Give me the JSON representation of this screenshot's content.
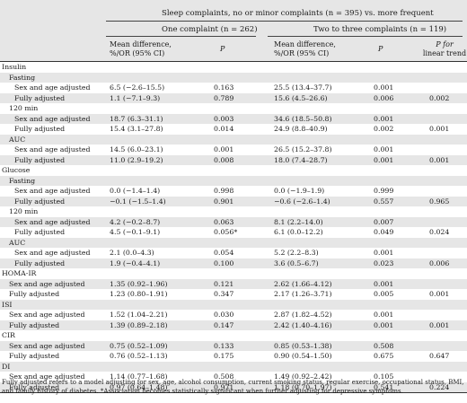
{
  "header": {
    "group_title": "Sleep complaints, no or minor complaints (n = 395) vs. more frequent",
    "sub1": "One complaint (n = 262)",
    "sub2": "Two to three complaints (n = 119)",
    "md1": [
      "Mean difference,",
      "%/OR (95% CI)"
    ],
    "p1": "P",
    "md2": [
      "Mean difference,",
      "%/OR (95% CI)"
    ],
    "p2": "P",
    "trend": [
      "P for",
      "linear trend"
    ]
  },
  "rows": [
    {
      "label": "Insulin",
      "indent": 0,
      "shade": false,
      "v": [
        "",
        "",
        "",
        "",
        ""
      ]
    },
    {
      "label": "Fasting",
      "indent": 1,
      "shade": true,
      "v": [
        "",
        "",
        "",
        "",
        ""
      ]
    },
    {
      "label": "Sex and age adjusted",
      "indent": 2,
      "shade": false,
      "v": [
        "6.5 (−2.6–15.5)",
        "0.163",
        "25.5 (13.4–37.7)",
        "0.001",
        ""
      ]
    },
    {
      "label": "Fully adjusted",
      "indent": 2,
      "shade": true,
      "v": [
        "1.1 (−7.1–9.3)",
        "0.789",
        "15.6 (4.5–26.6)",
        "0.006",
        "0.002"
      ]
    },
    {
      "label": "120 min",
      "indent": 1,
      "shade": false,
      "v": [
        "",
        "",
        "",
        "",
        ""
      ]
    },
    {
      "label": "Sex and age adjusted",
      "indent": 2,
      "shade": true,
      "v": [
        "18.7 (6.3–31.1)",
        "0.003",
        "34.6 (18.5–50.8)",
        "0.001",
        ""
      ]
    },
    {
      "label": "Fully adjusted",
      "indent": 2,
      "shade": false,
      "v": [
        "15.4 (3.1–27.8)",
        "0.014",
        "24.9 (8.8–40.9)",
        "0.002",
        "0.001"
      ]
    },
    {
      "label": "AUC",
      "indent": 1,
      "shade": true,
      "v": [
        "",
        "",
        "",
        "",
        ""
      ]
    },
    {
      "label": "Sex and age adjusted",
      "indent": 2,
      "shade": false,
      "v": [
        "14.5 (6.0–23.1)",
        "0.001",
        "26.5 (15.2–37.8)",
        "0.001",
        ""
      ]
    },
    {
      "label": "Fully adjusted",
      "indent": 2,
      "shade": true,
      "v": [
        "11.0 (2.9–19.2)",
        "0.008",
        "18.0 (7.4–28.7)",
        "0.001",
        "0.001"
      ]
    },
    {
      "label": "Glucose",
      "indent": 0,
      "shade": false,
      "v": [
        "",
        "",
        "",
        "",
        ""
      ]
    },
    {
      "label": "Fasting",
      "indent": 1,
      "shade": true,
      "v": [
        "",
        "",
        "",
        "",
        ""
      ]
    },
    {
      "label": "Sex and age adjusted",
      "indent": 2,
      "shade": false,
      "v": [
        "0.0 (−1.4–1.4)",
        "0.998",
        "0.0 (−1.9–1.9)",
        "0.999",
        ""
      ]
    },
    {
      "label": "Fully adjusted",
      "indent": 2,
      "shade": true,
      "v": [
        "−0.1 (−1.5–1.4)",
        "0.901",
        "−0.6 (−2.6–1.4)",
        "0.557",
        "0.965"
      ]
    },
    {
      "label": "120 min",
      "indent": 1,
      "shade": false,
      "v": [
        "",
        "",
        "",
        "",
        ""
      ]
    },
    {
      "label": "Sex and age adjusted",
      "indent": 2,
      "shade": true,
      "v": [
        "4.2 (−0.2–8.7)",
        "0.063",
        "8.1 (2.2–14.0)",
        "0.007",
        ""
      ]
    },
    {
      "label": "Fully adjusted",
      "indent": 2,
      "shade": false,
      "v": [
        "4.5 (−0.1–9.1)",
        "0.056*",
        "6.1 (0.0–12.2)",
        "0.049",
        "0.024"
      ]
    },
    {
      "label": "AUC",
      "indent": 1,
      "shade": true,
      "v": [
        "",
        "",
        "",
        "",
        ""
      ]
    },
    {
      "label": "Sex and age adjusted",
      "indent": 2,
      "shade": false,
      "v": [
        "2.1 (0.0–4.3)",
        "0.054",
        "5.2 (2.2–8.3)",
        "0.001",
        ""
      ]
    },
    {
      "label": "Fully adjusted",
      "indent": 2,
      "shade": true,
      "v": [
        "1.9 (−0.4–4.1)",
        "0.100",
        "3.6 (0.5–6.7)",
        "0.023",
        "0.006"
      ]
    },
    {
      "label": "HOMA-IR",
      "indent": 0,
      "shade": false,
      "v": [
        "",
        "",
        "",
        "",
        ""
      ]
    },
    {
      "label": "Sex and age adjusted",
      "indent": 1,
      "shade": true,
      "v": [
        "1.35 (0.92–1.96)",
        "0.121",
        "2.62 (1.66–4.12)",
        "0.001",
        ""
      ]
    },
    {
      "label": "Fully adjusted",
      "indent": 1,
      "shade": false,
      "v": [
        "1.23 (0.80–1.91)",
        "0.347",
        "2.17 (1.26–3.71)",
        "0.005",
        "0.001"
      ]
    },
    {
      "label": "ISI",
      "indent": 0,
      "shade": true,
      "v": [
        "",
        "",
        "",
        "",
        ""
      ]
    },
    {
      "label": "Sex and age adjusted",
      "indent": 1,
      "shade": false,
      "v": [
        "1.52 (1.04–2.21)",
        "0.030",
        "2.87 (1.82–4.52)",
        "0.001",
        ""
      ]
    },
    {
      "label": "Fully adjusted",
      "indent": 1,
      "shade": true,
      "v": [
        "1.39 (0.89–2.18)",
        "0.147",
        "2.42 (1.40–4.16)",
        "0.001",
        "0.001"
      ]
    },
    {
      "label": "CIR",
      "indent": 0,
      "shade": false,
      "v": [
        "",
        "",
        "",
        "",
        ""
      ]
    },
    {
      "label": "Sex and age adjusted",
      "indent": 1,
      "shade": true,
      "v": [
        "0.75 (0.52–1.09)",
        "0.133",
        "0.85 (0.53–1.38)",
        "0.508",
        ""
      ]
    },
    {
      "label": "Fully adjusted",
      "indent": 1,
      "shade": false,
      "v": [
        "0.76 (0.52–1.13)",
        "0.175",
        "0.90 (0.54–1.50)",
        "0.675",
        "0.647"
      ]
    },
    {
      "label": "DI",
      "indent": 0,
      "shade": true,
      "v": [
        "",
        "",
        "",
        "",
        ""
      ]
    },
    {
      "label": "Sex and age adjusted",
      "indent": 1,
      "shade": false,
      "v": [
        "1.14 (0.77–1.68)",
        "0.508",
        "1.49 (0.92–2.42)",
        "0.105",
        ""
      ]
    },
    {
      "label": "Fully adjusted",
      "indent": 1,
      "shade": true,
      "v": [
        "0.97 (0.64–1.48)",
        "0.971",
        "1.18 (0.70–1.97)",
        "0.541",
        "0.224"
      ]
    }
  ],
  "footnote": "Fully adjusted refers to a model adjusting for sex, age, alcohol consumption, current smoking status, regular exercise, occupational status, BMI, and family history of diabetes. *Association becomes statistically significant when further adjusting for depressive symptoms."
}
